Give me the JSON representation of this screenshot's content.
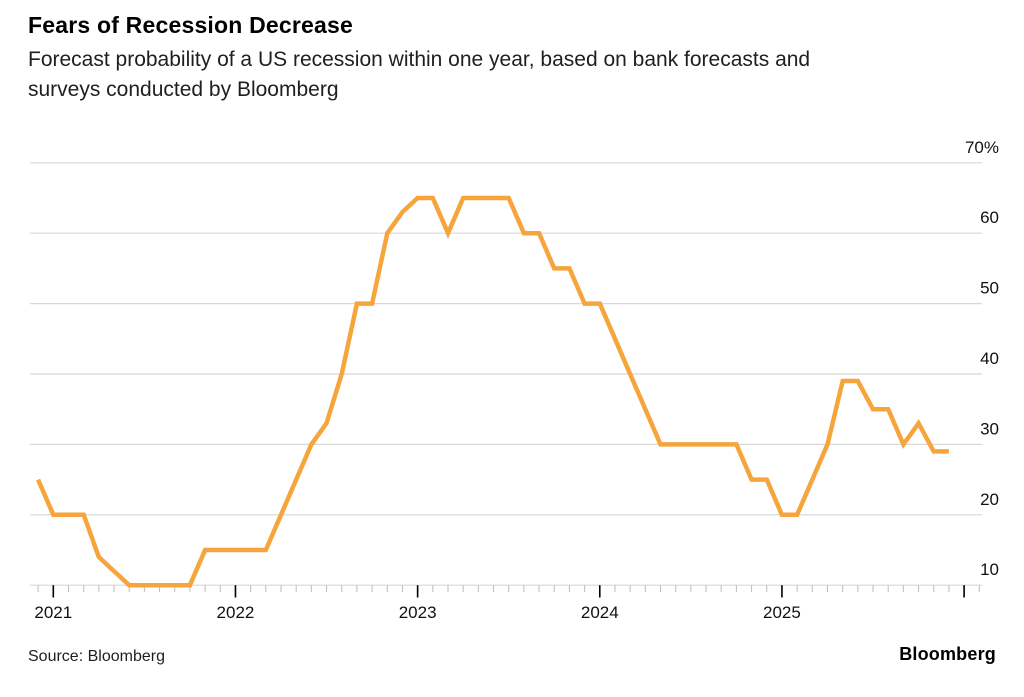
{
  "header": {
    "title": "Fears of Recession Decrease",
    "subtitle_line1": "Forecast probability of a US recession within one year, based on bank forecasts and",
    "subtitle_line2": "surveys conducted by Bloomberg"
  },
  "footer": {
    "source": "Source: Bloomberg",
    "logo": "Bloomberg"
  },
  "colors": {
    "line": "#F6A53C",
    "gridline": "#D8D8D8",
    "minor_tick": "#BDBDBD",
    "major_tick": "#000000",
    "axis_text": "#111111",
    "background": "#FFFFFF"
  },
  "chart_data": {
    "type": "line",
    "title": "Fears of Recession Decrease",
    "series_name": "Forecast probability of a US recession within one year (%)",
    "unit": "%",
    "grid": "horizontal",
    "ylim": [
      10,
      70
    ],
    "y_ticks": [
      10,
      20,
      30,
      40,
      50,
      60,
      70
    ],
    "y_top_tick_label": "70%",
    "x_year_labels": [
      "2021",
      "2022",
      "2023",
      "2024",
      "2025"
    ],
    "points": [
      {
        "date": "2020-12",
        "value": 25
      },
      {
        "date": "2021-01",
        "value": 20
      },
      {
        "date": "2021-02",
        "value": 20
      },
      {
        "date": "2021-03",
        "value": 20
      },
      {
        "date": "2021-04",
        "value": 14
      },
      {
        "date": "2021-05",
        "value": 12
      },
      {
        "date": "2021-06",
        "value": 10
      },
      {
        "date": "2021-07",
        "value": 10
      },
      {
        "date": "2021-08",
        "value": 10
      },
      {
        "date": "2021-09",
        "value": 10
      },
      {
        "date": "2021-10",
        "value": 10
      },
      {
        "date": "2021-11",
        "value": 15
      },
      {
        "date": "2021-12",
        "value": 15
      },
      {
        "date": "2022-01",
        "value": 15
      },
      {
        "date": "2022-02",
        "value": 15
      },
      {
        "date": "2022-03",
        "value": 15
      },
      {
        "date": "2022-04",
        "value": 20
      },
      {
        "date": "2022-05",
        "value": 25
      },
      {
        "date": "2022-06",
        "value": 30
      },
      {
        "date": "2022-07",
        "value": 33
      },
      {
        "date": "2022-08",
        "value": 40
      },
      {
        "date": "2022-09",
        "value": 50
      },
      {
        "date": "2022-10",
        "value": 50
      },
      {
        "date": "2022-11",
        "value": 60
      },
      {
        "date": "2022-12",
        "value": 63
      },
      {
        "date": "2023-01",
        "value": 65
      },
      {
        "date": "2023-02",
        "value": 65
      },
      {
        "date": "2023-03",
        "value": 60
      },
      {
        "date": "2023-04",
        "value": 65
      },
      {
        "date": "2023-05",
        "value": 65
      },
      {
        "date": "2023-06",
        "value": 65
      },
      {
        "date": "2023-07",
        "value": 65
      },
      {
        "date": "2023-08",
        "value": 60
      },
      {
        "date": "2023-09",
        "value": 60
      },
      {
        "date": "2023-10",
        "value": 55
      },
      {
        "date": "2023-11",
        "value": 55
      },
      {
        "date": "2023-12",
        "value": 50
      },
      {
        "date": "2024-01",
        "value": 50
      },
      {
        "date": "2024-02",
        "value": 45
      },
      {
        "date": "2024-03",
        "value": 40
      },
      {
        "date": "2024-04",
        "value": 35
      },
      {
        "date": "2024-05",
        "value": 30
      },
      {
        "date": "2024-06",
        "value": 30
      },
      {
        "date": "2024-07",
        "value": 30
      },
      {
        "date": "2024-08",
        "value": 30
      },
      {
        "date": "2024-09",
        "value": 30
      },
      {
        "date": "2024-10",
        "value": 30
      },
      {
        "date": "2024-11",
        "value": 25
      },
      {
        "date": "2024-12",
        "value": 25
      },
      {
        "date": "2025-01",
        "value": 20
      },
      {
        "date": "2025-02",
        "value": 20
      },
      {
        "date": "2025-03",
        "value": 25
      },
      {
        "date": "2025-04",
        "value": 30
      },
      {
        "date": "2025-05",
        "value": 39
      },
      {
        "date": "2025-06",
        "value": 39
      },
      {
        "date": "2025-07",
        "value": 35
      },
      {
        "date": "2025-08",
        "value": 35
      },
      {
        "date": "2025-09",
        "value": 30
      },
      {
        "date": "2025-10",
        "value": 33
      },
      {
        "date": "2025-11",
        "value": 29
      },
      {
        "date": "2025-12",
        "value": 29
      }
    ]
  }
}
